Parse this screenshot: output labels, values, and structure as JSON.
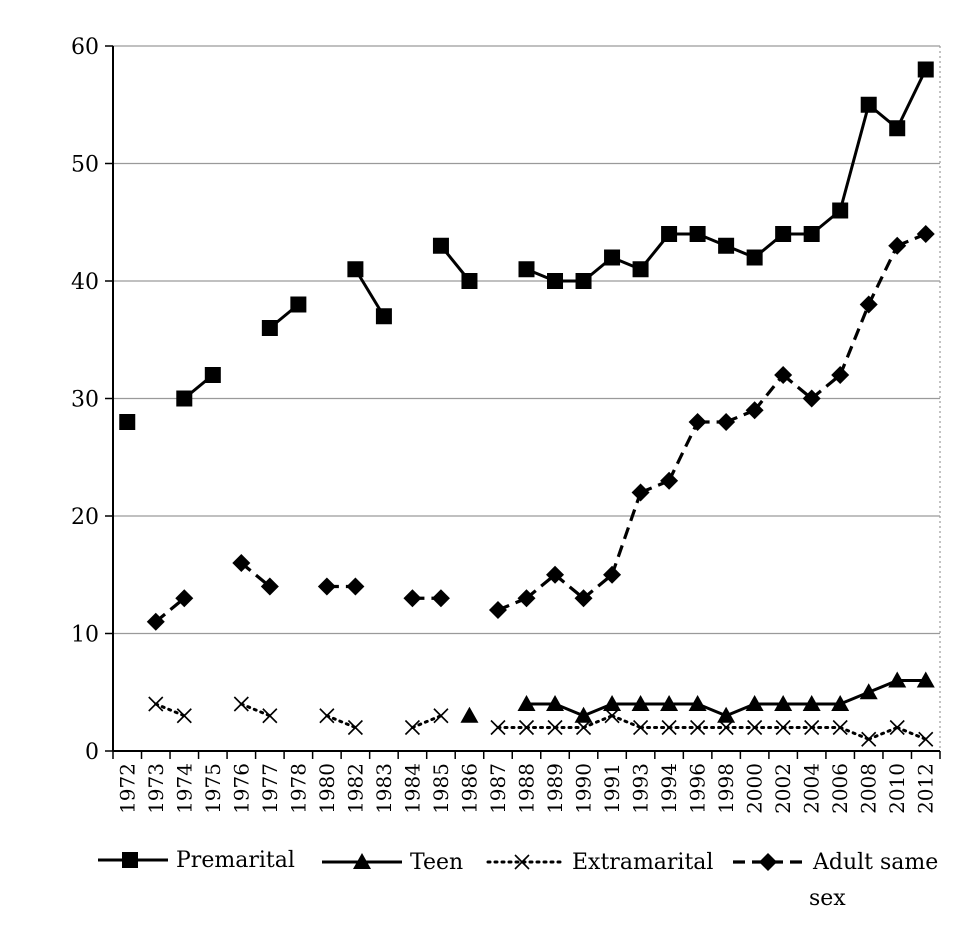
{
  "chart_data": {
    "type": "line",
    "title": "",
    "xlabel": "",
    "ylabel": "",
    "ylim": [
      0,
      60
    ],
    "yticks": [
      0,
      10,
      20,
      30,
      40,
      50,
      60
    ],
    "grid": "horizontal",
    "legend_position": "bottom",
    "categories": [
      "1972",
      "1973",
      "1974",
      "1975",
      "1976",
      "1977",
      "1978",
      "1980",
      "1982",
      "1983",
      "1984",
      "1985",
      "1986",
      "1987",
      "1988",
      "1989",
      "1990",
      "1991",
      "1993",
      "1994",
      "1996",
      "1998",
      "2000",
      "2002",
      "2004",
      "2006",
      "2008",
      "2010",
      "2012"
    ],
    "series": [
      {
        "name": "Premarital",
        "line": "solid",
        "marker": "square",
        "values": [
          28,
          null,
          30,
          32,
          null,
          36,
          38,
          null,
          41,
          37,
          null,
          43,
          40,
          null,
          41,
          40,
          40,
          42,
          41,
          44,
          44,
          43,
          42,
          44,
          44,
          46,
          55,
          53,
          58
        ]
      },
      {
        "name": "Teen",
        "line": "solid",
        "marker": "triangle",
        "values": [
          null,
          null,
          null,
          null,
          null,
          null,
          null,
          null,
          null,
          null,
          null,
          null,
          3,
          null,
          4,
          4,
          3,
          4,
          4,
          4,
          4,
          3,
          4,
          4,
          4,
          4,
          5,
          6,
          6
        ]
      },
      {
        "name": "Extramarital",
        "line": "dotted",
        "marker": "x",
        "values": [
          null,
          4,
          3,
          null,
          4,
          3,
          null,
          3,
          2,
          null,
          2,
          3,
          null,
          2,
          2,
          2,
          2,
          3,
          2,
          2,
          2,
          2,
          2,
          2,
          2,
          2,
          1,
          2,
          1
        ]
      },
      {
        "name": "Adult same sex",
        "line": "dashed",
        "marker": "diamond",
        "values": [
          null,
          11,
          13,
          null,
          16,
          14,
          null,
          14,
          14,
          null,
          13,
          13,
          null,
          12,
          13,
          15,
          13,
          15,
          22,
          23,
          28,
          28,
          29,
          32,
          30,
          32,
          38,
          43,
          44
        ]
      }
    ]
  }
}
